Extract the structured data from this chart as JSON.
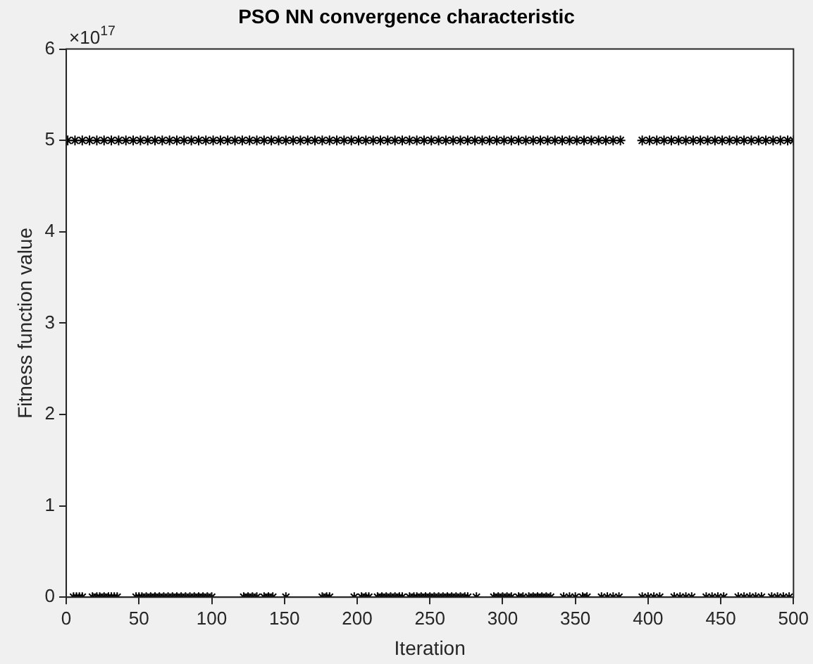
{
  "chart_data": {
    "type": "scatter",
    "title": "PSO NN convergence characteristic",
    "xlabel": "Iteration",
    "ylabel": "Fitness function value",
    "annotations": [
      "×10$^{17}$"
    ],
    "xlim": [
      0,
      500
    ],
    "xticks": [
      0,
      50,
      100,
      150,
      200,
      250,
      300,
      350,
      400,
      450,
      500
    ],
    "ylim": [
      0,
      6
    ],
    "yticks": [
      0,
      1,
      2,
      3,
      4,
      5,
      6
    ],
    "marker": "cross",
    "legend": false,
    "series": [
      {
        "color": "#000000",
        "x": [
          1,
          6,
          11,
          16,
          21,
          26,
          31,
          36,
          41,
          46,
          51,
          56,
          61,
          66,
          71,
          76,
          81,
          86,
          91,
          96,
          101,
          106,
          111,
          116,
          121,
          126,
          131,
          136,
          141,
          146,
          151,
          156,
          161,
          166,
          171,
          176,
          181,
          186,
          191,
          196,
          201,
          206,
          211,
          216,
          221,
          226,
          231,
          236,
          241,
          246,
          251,
          256,
          261,
          266,
          271,
          276,
          281,
          286,
          291,
          296,
          301,
          306,
          311,
          316,
          321,
          326,
          331,
          336,
          341,
          346,
          351,
          356,
          361,
          366,
          371,
          376,
          381,
          396,
          401,
          406,
          411,
          416,
          421,
          426,
          431,
          436,
          441,
          446,
          451,
          456,
          461,
          466,
          471,
          476,
          481,
          486,
          491,
          496,
          500
        ],
        "values": [
          5,
          5,
          5,
          5,
          5,
          5,
          5,
          5,
          5,
          5,
          5,
          5,
          5,
          5,
          5,
          5,
          5,
          5,
          5,
          5,
          5,
          5,
          5,
          5,
          5,
          5,
          5,
          5,
          5,
          5,
          5,
          5,
          5,
          5,
          5,
          5,
          5,
          5,
          5,
          5,
          5,
          5,
          5,
          5,
          5,
          5,
          5,
          5,
          5,
          5,
          5,
          5,
          5,
          5,
          5,
          5,
          5,
          5,
          5,
          5,
          5,
          5,
          5,
          5,
          5,
          5,
          5,
          5,
          5,
          5,
          5,
          5,
          5,
          5,
          5,
          5,
          5,
          5,
          5,
          5,
          5,
          5,
          5,
          5,
          5,
          5,
          5,
          5,
          5,
          5,
          5,
          5,
          5,
          5,
          5,
          5,
          5,
          5,
          5
        ]
      },
      {
        "color": "#000000",
        "x": [
          5,
          7,
          9,
          11,
          18,
          21,
          23,
          26,
          29,
          31,
          33,
          35,
          48,
          50,
          52,
          55,
          58,
          61,
          64,
          67,
          70,
          73,
          76,
          79,
          82,
          85,
          88,
          91,
          94,
          97,
          100,
          122,
          125,
          128,
          131,
          136,
          139,
          142,
          151,
          176,
          179,
          181,
          198,
          203,
          206,
          208,
          214,
          217,
          220,
          223,
          226,
          229,
          231,
          236,
          239,
          241,
          244,
          247,
          250,
          253,
          256,
          259,
          262,
          265,
          268,
          271,
          274,
          276,
          282,
          294,
          297,
          300,
          303,
          306,
          311,
          314,
          318,
          321,
          324,
          327,
          330,
          333,
          342,
          346,
          350,
          355,
          358,
          368,
          372,
          376,
          380,
          396,
          400,
          404,
          408,
          418,
          422,
          426,
          430,
          440,
          444,
          448,
          452,
          462,
          466,
          470,
          474,
          478,
          485,
          489,
          493,
          497
        ],
        "values": [
          0,
          0,
          0,
          0,
          0,
          0,
          0,
          0,
          0,
          0,
          0,
          0,
          0,
          0,
          0,
          0,
          0,
          0,
          0,
          0,
          0,
          0,
          0,
          0,
          0,
          0,
          0,
          0,
          0,
          0,
          0,
          0,
          0,
          0,
          0,
          0,
          0,
          0,
          0,
          0,
          0,
          0,
          0,
          0,
          0,
          0,
          0,
          0,
          0,
          0,
          0,
          0,
          0,
          0,
          0,
          0,
          0,
          0,
          0,
          0,
          0,
          0,
          0,
          0,
          0,
          0,
          0,
          0,
          0,
          0,
          0,
          0,
          0,
          0,
          0,
          0,
          0,
          0,
          0,
          0,
          0,
          0,
          0,
          0,
          0,
          0,
          0,
          0,
          0,
          0,
          0,
          0,
          0,
          0,
          0,
          0,
          0,
          0,
          0,
          0,
          0,
          0,
          0,
          0,
          0,
          0,
          0,
          0,
          0,
          0,
          0,
          0
        ]
      }
    ]
  }
}
